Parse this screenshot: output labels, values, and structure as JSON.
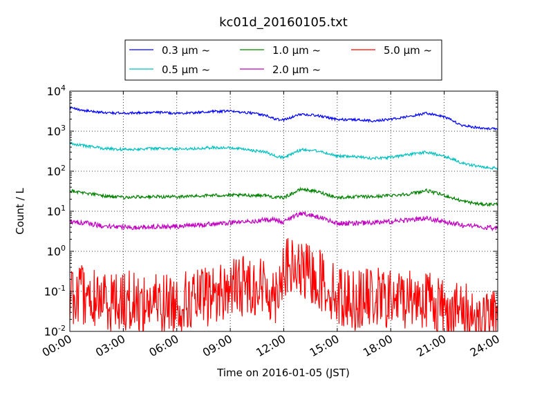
{
  "chart_data": {
    "type": "line",
    "title": "kc01d_20160105.txt",
    "xlabel": "Time on 2016-01-05 (JST)",
    "ylabel": "Count / L",
    "yscale": "log",
    "xlim": [
      "2016-01-05 00:00",
      "2016-01-06 00:00"
    ],
    "ylim": [
      0.01,
      10000
    ],
    "grid": true,
    "legend_position": "top-center",
    "x_ticks": [
      "00:00",
      "03:00",
      "06:00",
      "09:00",
      "12:00",
      "15:00",
      "18:00",
      "21:00",
      "24:00"
    ],
    "y_ticks": [
      {
        "base": "10",
        "exp": "-2",
        "value": 0.01
      },
      {
        "base": "10",
        "exp": "-1",
        "value": 0.1
      },
      {
        "base": "10",
        "exp": "0",
        "value": 1
      },
      {
        "base": "10",
        "exp": "1",
        "value": 10
      },
      {
        "base": "10",
        "exp": "2",
        "value": 100
      },
      {
        "base": "10",
        "exp": "3",
        "value": 1000
      },
      {
        "base": "10",
        "exp": "4",
        "value": 10000
      }
    ],
    "x_hours": [
      0,
      1,
      2,
      3,
      4,
      5,
      6,
      7,
      8,
      9,
      10,
      11,
      11.5,
      12,
      13,
      14,
      15,
      16,
      17,
      18,
      19,
      20,
      21,
      22,
      23,
      24
    ],
    "series": [
      {
        "name": "0.3 μm ~",
        "color": "#0000ff",
        "noise": 0.03,
        "values": [
          3800,
          3200,
          2900,
          2800,
          2900,
          2950,
          2800,
          2900,
          3100,
          3150,
          2900,
          2500,
          2000,
          1900,
          2700,
          2400,
          1950,
          1950,
          1800,
          2000,
          2300,
          2800,
          2300,
          1400,
          1200,
          1150
        ]
      },
      {
        "name": "0.5 μm ~",
        "color": "#00bfbf",
        "noise": 0.035,
        "values": [
          500,
          420,
          370,
          350,
          360,
          370,
          360,
          370,
          390,
          380,
          340,
          300,
          240,
          220,
          350,
          320,
          240,
          230,
          210,
          220,
          260,
          300,
          240,
          160,
          130,
          120
        ]
      },
      {
        "name": "1.0 μm ~",
        "color": "#008000",
        "noise": 0.04,
        "values": [
          33,
          28,
          24,
          22,
          23,
          23,
          23,
          24,
          25,
          25,
          25,
          25,
          22,
          22,
          36,
          30,
          22,
          23,
          23,
          25,
          27,
          33,
          25,
          18,
          15,
          15
        ]
      },
      {
        "name": "2.0 μm ~",
        "color": "#bf00bf",
        "noise": 0.06,
        "values": [
          5.5,
          5.0,
          4.2,
          4.0,
          4.0,
          4.1,
          4.2,
          4.5,
          4.8,
          5.2,
          5.5,
          6.0,
          6.2,
          5.5,
          9.0,
          7.0,
          5.0,
          5.0,
          5.2,
          5.5,
          6.0,
          6.8,
          5.5,
          4.5,
          4.0,
          3.8
        ]
      },
      {
        "name": "5.0 μm ~",
        "color": "#ff0000",
        "noise": 0.35,
        "values": [
          0.09,
          0.07,
          0.06,
          0.06,
          0.05,
          0.05,
          0.05,
          0.06,
          0.08,
          0.12,
          0.15,
          0.12,
          0.08,
          0.4,
          0.3,
          0.2,
          0.08,
          0.06,
          0.07,
          0.06,
          0.07,
          0.07,
          0.04,
          0.03,
          0.02,
          0.02
        ]
      }
    ]
  }
}
